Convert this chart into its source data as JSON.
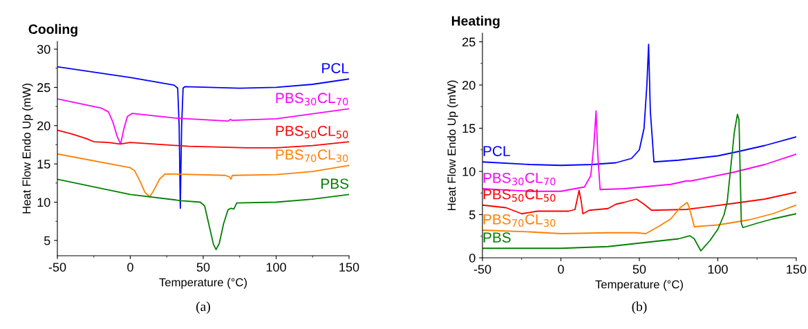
{
  "chart_data": [
    {
      "type": "line",
      "title": "Cooling",
      "xlabel": "Temperature (°C)",
      "ylabel": "Heat Flow Endo Up (mW)",
      "xlim": [
        -50,
        150
      ],
      "xticks": [
        -50,
        0,
        50,
        100,
        150
      ],
      "ylim": [
        3,
        31
      ],
      "yticks": [
        5,
        10,
        15,
        20,
        25,
        30
      ],
      "grid": false,
      "legend": false,
      "annotations": [
        "(a)"
      ],
      "series": [
        {
          "name": "PCL",
          "color": "#0000ff",
          "x": [
            -50,
            0,
            30,
            32.5,
            33.5,
            34.3,
            35.2,
            36.2,
            37.5,
            75,
            100,
            125,
            150
          ],
          "values": [
            27.7,
            26.3,
            25.3,
            24.9,
            20.0,
            9.2,
            20.0,
            24.9,
            25.1,
            24.9,
            25.0,
            25.4,
            26.1
          ]
        },
        {
          "name": "PBS$_{30}$CL$_{70}$",
          "color": "#ff00ff",
          "x": [
            -50,
            -20,
            -15,
            -12,
            -9,
            -6.6,
            -4.5,
            -2,
            1.4,
            30,
            67,
            68.5,
            70,
            100,
            150
          ],
          "values": [
            23.5,
            22.3,
            21.8,
            20.5,
            18.6,
            17.6,
            19.5,
            21.2,
            21.6,
            21.0,
            20.6,
            20.8,
            20.7,
            20.9,
            22.2
          ]
        },
        {
          "name": "PBS$_{50}$CL$_{50}$",
          "color": "#ff0000",
          "x": [
            -50,
            -40,
            -30,
            -25,
            -15,
            -7,
            0,
            40,
            80,
            100,
            125,
            150
          ],
          "values": [
            19.4,
            18.9,
            18.3,
            17.9,
            17.8,
            17.6,
            17.8,
            17.3,
            17.1,
            17.1,
            17.4,
            17.9
          ]
        },
        {
          "name": "PBS$_{70}$CL$_{30}$",
          "color": "#ff7f00",
          "x": [
            -50,
            0,
            3,
            7,
            10,
            13.3,
            16,
            20,
            24,
            65,
            68,
            69,
            70,
            100,
            125,
            150
          ],
          "values": [
            16.3,
            14.5,
            14.1,
            12.6,
            11.3,
            10.7,
            11.5,
            13.0,
            13.7,
            13.5,
            13.3,
            13.0,
            13.5,
            13.6,
            14.0,
            14.8
          ]
        },
        {
          "name": "PBS",
          "color": "#008000",
          "x": [
            -50,
            0,
            35,
            48,
            51,
            54,
            57,
            58.8,
            61,
            64,
            67,
            69,
            71,
            73,
            100,
            125,
            150
          ],
          "values": [
            13.0,
            11.0,
            10.2,
            10.0,
            9.5,
            7.0,
            4.5,
            3.8,
            4.6,
            7.2,
            9.0,
            9.2,
            9.1,
            9.9,
            10.0,
            10.4,
            11.0
          ]
        }
      ]
    },
    {
      "type": "line",
      "title": "Heating",
      "xlabel": "Temperature (°C)",
      "ylabel": "Heat Flow Endo Up (mW)",
      "xlim": [
        -50,
        150
      ],
      "xticks": [
        -50,
        0,
        50,
        100,
        150
      ],
      "ylim": [
        0,
        26
      ],
      "yticks": [
        0,
        5,
        10,
        15,
        20,
        25
      ],
      "grid": false,
      "legend": false,
      "annotations": [
        "(b)"
      ],
      "series": [
        {
          "name": "PCL",
          "color": "#0000ff",
          "x": [
            -50,
            -20,
            0,
            20,
            35,
            45,
            50,
            53,
            54.8,
            55.9,
            57,
            59.3,
            75,
            100,
            113,
            130,
            150
          ],
          "values": [
            11.1,
            10.8,
            10.7,
            10.8,
            11.0,
            11.5,
            12.5,
            15.0,
            20.0,
            24.7,
            17.0,
            11.1,
            11.3,
            11.8,
            12.3,
            13.0,
            14.0
          ]
        },
        {
          "name": "PBS$_{30}$CL$_{70}$",
          "color": "#ff00ff",
          "x": [
            -50,
            -20,
            0,
            15,
            19,
            21,
            22.4,
            23.5,
            25,
            40,
            70,
            80,
            83,
            110,
            130,
            150
          ],
          "values": [
            8.0,
            7.7,
            7.7,
            8.2,
            9.5,
            13.0,
            17.0,
            12.0,
            7.9,
            8.0,
            8.5,
            8.9,
            8.9,
            9.9,
            10.8,
            12.0
          ]
        },
        {
          "name": "PBS$_{50}$CL$_{50}$",
          "color": "#ff0000",
          "x": [
            -50,
            -35,
            -25,
            -15,
            5,
            9,
            11.6,
            13,
            14,
            18,
            30,
            35,
            40,
            48.2,
            53,
            57.8,
            80,
            110,
            130,
            150
          ],
          "values": [
            6.1,
            5.8,
            5.1,
            5.4,
            5.4,
            5.6,
            7.8,
            6.5,
            5.1,
            5.5,
            5.7,
            6.2,
            6.4,
            6.8,
            6.2,
            5.5,
            5.6,
            6.3,
            6.8,
            7.6
          ]
        },
        {
          "name": "PBS$_{70}$CL$_{30}$",
          "color": "#ff7f00",
          "x": [
            -50,
            -20,
            0,
            30,
            48,
            54.1,
            62,
            70,
            76,
            80.4,
            81.5,
            85.1,
            100,
            120,
            135,
            150
          ],
          "values": [
            3.2,
            3.0,
            2.8,
            2.9,
            2.9,
            2.8,
            3.6,
            4.5,
            5.8,
            6.4,
            6.0,
            3.6,
            3.8,
            4.4,
            5.1,
            6.1
          ]
        },
        {
          "name": "PBS",
          "color": "#008000",
          "x": [
            -50,
            0,
            30,
            50,
            65,
            75,
            82.2,
            85,
            89.2,
            95,
            100,
            104,
            106,
            108,
            110.5,
            112.5,
            113.5,
            115,
            116,
            125,
            135,
            150
          ],
          "values": [
            1.1,
            1.1,
            1.3,
            1.7,
            2.0,
            2.2,
            2.55,
            2.2,
            0.8,
            2.0,
            3.3,
            5.0,
            6.5,
            10.0,
            14.5,
            16.6,
            16.0,
            4.0,
            3.5,
            4.0,
            4.5,
            5.1
          ]
        }
      ]
    }
  ]
}
